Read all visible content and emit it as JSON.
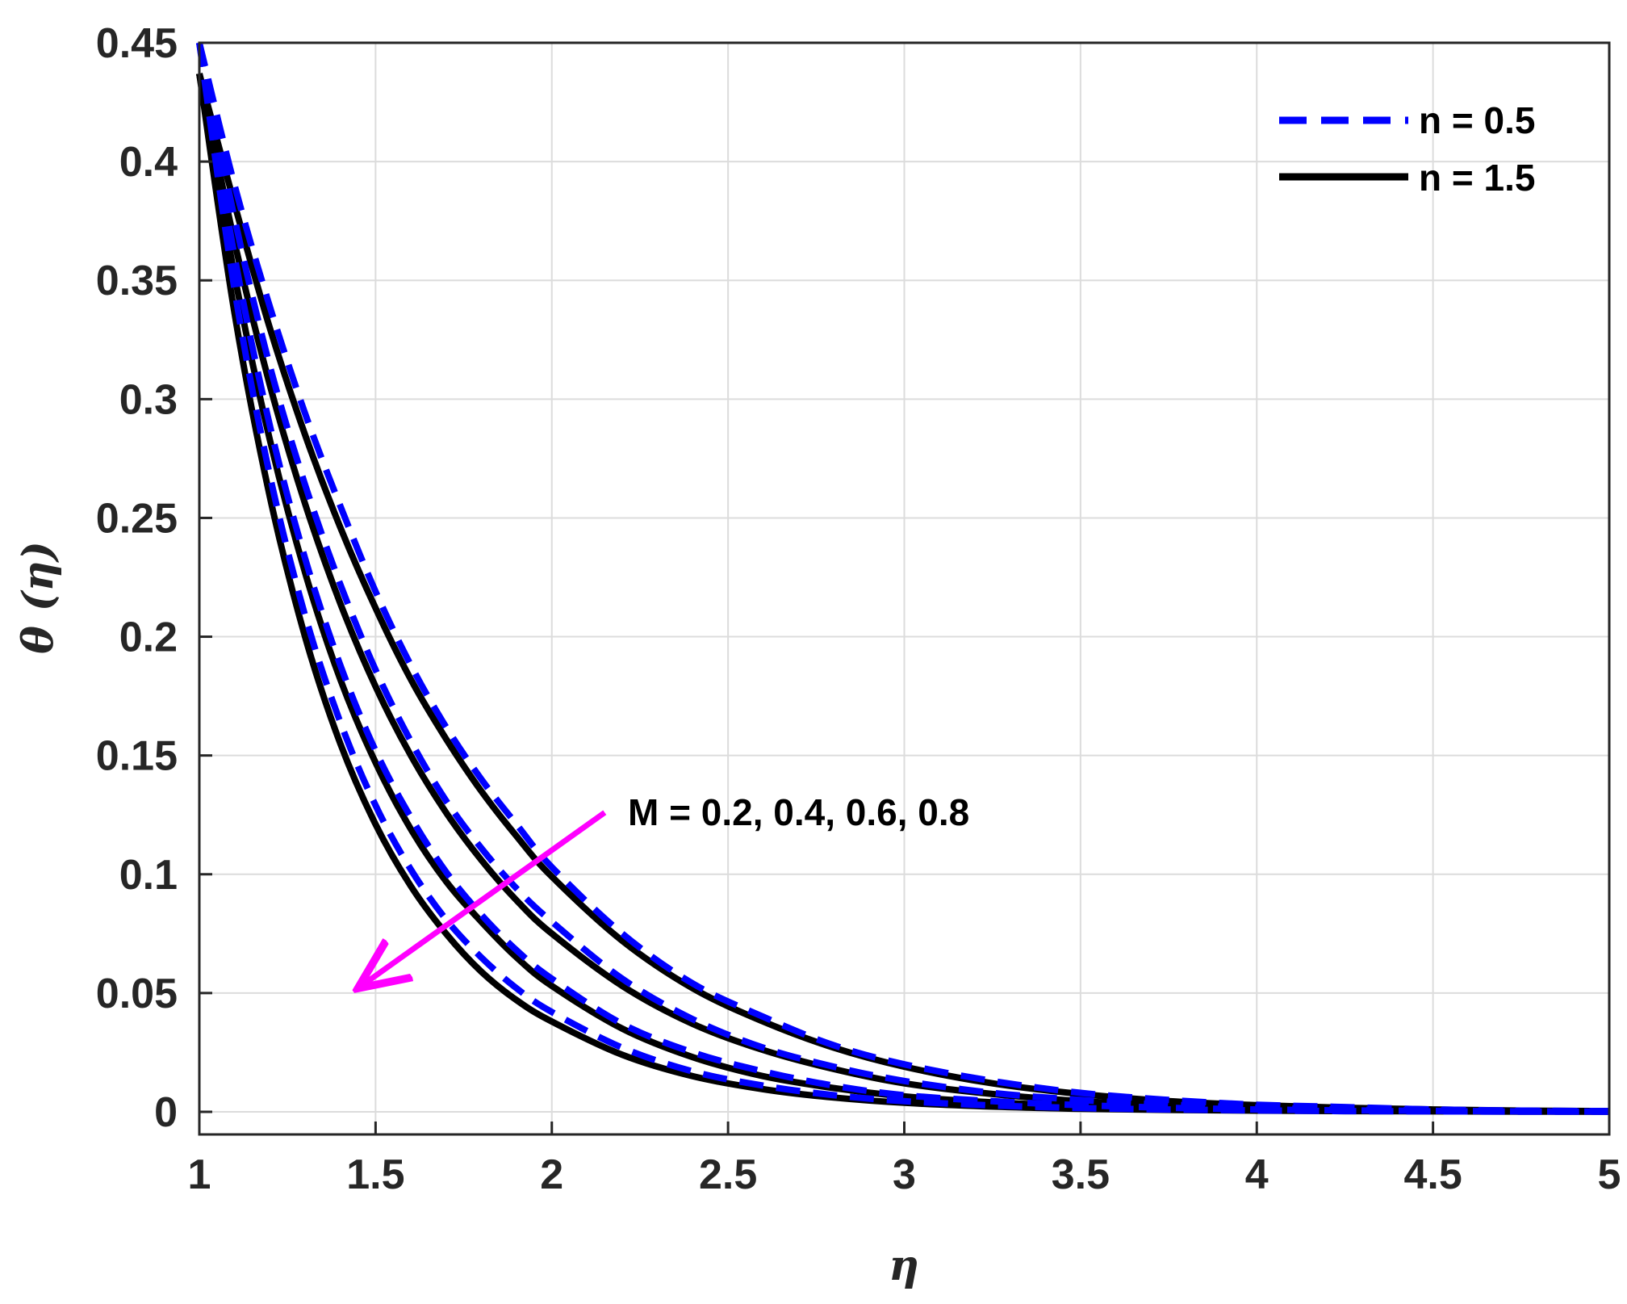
{
  "chart_data": {
    "type": "line",
    "xlabel": "η",
    "ylabel": "θ  (η)",
    "xlim": [
      1,
      5
    ],
    "ylim": [
      -0.01,
      0.45
    ],
    "xticks": [
      1,
      1.5,
      2,
      2.5,
      3,
      3.5,
      4,
      4.5,
      5
    ],
    "xtick_labels": [
      "1",
      "1.5",
      "2",
      "2.5",
      "3",
      "3.5",
      "4",
      "4.5",
      "5"
    ],
    "yticks": [
      0,
      0.05,
      0.1,
      0.15,
      0.2,
      0.25,
      0.3,
      0.35,
      0.4,
      0.45
    ],
    "ytick_labels": [
      "0",
      "0.05",
      "0.1",
      "0.15",
      "0.2",
      "0.25",
      "0.3",
      "0.35",
      "0.4",
      "0.45"
    ],
    "grid": true,
    "legend_position": "top-right",
    "legend": [
      {
        "label": "n = 0.5",
        "color": "#0000ff",
        "style": "dashed"
      },
      {
        "label": "n = 1.5",
        "color": "#000000",
        "style": "solid"
      }
    ],
    "annotation": {
      "text": "M = 0.2, 0.4, 0.6, 0.8",
      "arrow_color": "#ff00ff",
      "arrow_from": [
        2.15,
        0.126
      ],
      "arrow_to": [
        1.45,
        0.052
      ]
    },
    "x": [
      1.0,
      1.1,
      1.2,
      1.3,
      1.4,
      1.5,
      1.6,
      1.7,
      1.8,
      1.9,
      2.0,
      2.2,
      2.4,
      2.6,
      2.8,
      3.0,
      3.25,
      3.5,
      3.75,
      4.0,
      4.25,
      4.5,
      4.75,
      5.0
    ],
    "series": [
      {
        "color": "#0000ff",
        "style": "dashed",
        "n": 0.5,
        "M": 0.2,
        "values": [
          0.45,
          0.39,
          0.339,
          0.294,
          0.255,
          0.219,
          0.188,
          0.162,
          0.14,
          0.121,
          0.103,
          0.075,
          0.054,
          0.04,
          0.028,
          0.02,
          0.013,
          0.008,
          0.005,
          0.003,
          0.002,
          0.001,
          0.0005,
          0.0003
        ]
      },
      {
        "color": "#000000",
        "style": "solid",
        "n": 1.5,
        "M": 0.2,
        "values": [
          0.437,
          0.382,
          0.33,
          0.285,
          0.246,
          0.212,
          0.182,
          0.157,
          0.135,
          0.116,
          0.099,
          0.072,
          0.052,
          0.038,
          0.027,
          0.019,
          0.012,
          0.0075,
          0.0045,
          0.0028,
          0.0017,
          0.001,
          0.0005,
          0.0003
        ]
      },
      {
        "color": "#0000ff",
        "style": "dashed",
        "n": 0.5,
        "M": 0.4,
        "values": [
          0.45,
          0.376,
          0.314,
          0.264,
          0.222,
          0.186,
          0.156,
          0.131,
          0.111,
          0.094,
          0.08,
          0.056,
          0.039,
          0.027,
          0.019,
          0.013,
          0.008,
          0.005,
          0.003,
          0.0018,
          0.001,
          0.0006,
          0.0003,
          0.0002
        ]
      },
      {
        "color": "#000000",
        "style": "solid",
        "n": 1.5,
        "M": 0.4,
        "values": [
          0.437,
          0.366,
          0.306,
          0.256,
          0.214,
          0.179,
          0.15,
          0.126,
          0.106,
          0.089,
          0.075,
          0.053,
          0.037,
          0.026,
          0.018,
          0.012,
          0.0075,
          0.0045,
          0.0027,
          0.0016,
          0.001,
          0.0006,
          0.0003,
          0.0002
        ]
      },
      {
        "color": "#0000ff",
        "style": "dashed",
        "n": 0.5,
        "M": 0.6,
        "values": [
          0.45,
          0.36,
          0.289,
          0.233,
          0.188,
          0.152,
          0.124,
          0.101,
          0.083,
          0.068,
          0.056,
          0.037,
          0.025,
          0.017,
          0.011,
          0.007,
          0.0045,
          0.0028,
          0.0017,
          0.001,
          0.0006,
          0.0004,
          0.0002,
          0.0001
        ]
      },
      {
        "color": "#000000",
        "style": "solid",
        "n": 1.5,
        "M": 0.6,
        "values": [
          0.437,
          0.352,
          0.283,
          0.227,
          0.182,
          0.147,
          0.119,
          0.097,
          0.08,
          0.065,
          0.053,
          0.035,
          0.023,
          0.015,
          0.01,
          0.0065,
          0.004,
          0.0025,
          0.0015,
          0.0009,
          0.0005,
          0.0003,
          0.0002,
          0.0001
        ]
      },
      {
        "color": "#0000ff",
        "style": "dashed",
        "n": 0.5,
        "M": 0.8,
        "values": [
          0.45,
          0.346,
          0.268,
          0.209,
          0.164,
          0.129,
          0.102,
          0.081,
          0.065,
          0.052,
          0.042,
          0.027,
          0.017,
          0.011,
          0.007,
          0.0045,
          0.0027,
          0.0016,
          0.001,
          0.0006,
          0.0003,
          0.0002,
          0.0001,
          0.0001
        ]
      },
      {
        "color": "#000000",
        "style": "solid",
        "n": 1.5,
        "M": 0.8,
        "values": [
          0.437,
          0.336,
          0.259,
          0.2,
          0.155,
          0.121,
          0.095,
          0.075,
          0.059,
          0.047,
          0.038,
          0.024,
          0.015,
          0.0095,
          0.006,
          0.0038,
          0.0022,
          0.0013,
          0.0008,
          0.0005,
          0.0003,
          0.0002,
          0.0001,
          0.0001
        ]
      }
    ]
  }
}
